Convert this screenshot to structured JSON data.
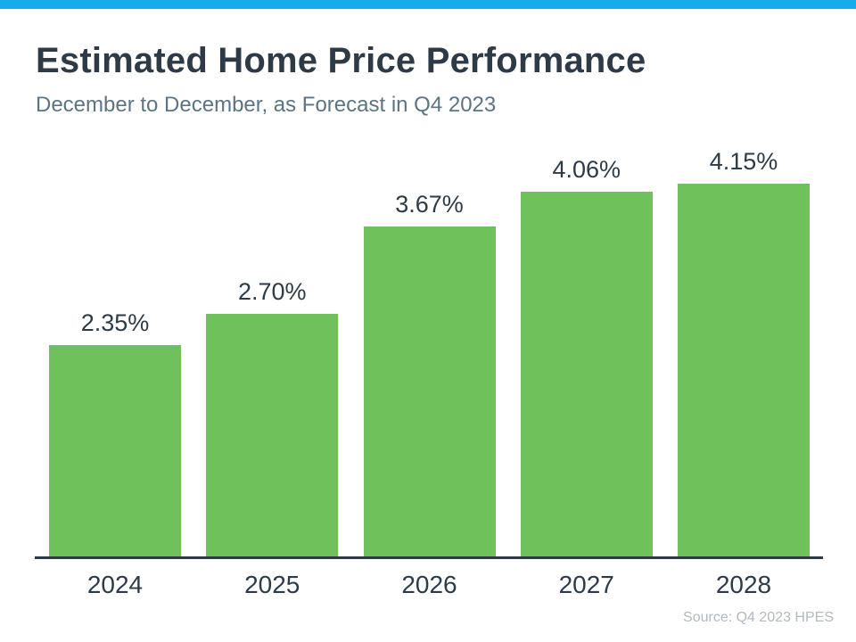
{
  "page": {
    "title": "Estimated Home Price Performance",
    "subtitle": "December to December, as Forecast in Q4 2023",
    "source": "Source: Q4 2023 HPES"
  },
  "colors": {
    "accent_strip": "#18abec",
    "bar_fill": "#6fc15b",
    "title_text": "#2e3b46",
    "subtitle_text": "#5d7482",
    "axis_line": "#2e3b46",
    "source_text": "#b2b9bf"
  },
  "chart_data": {
    "type": "bar",
    "title": "Estimated Home Price Performance",
    "subtitle": "December to December, as Forecast in Q4 2023",
    "categories": [
      "2024",
      "2025",
      "2026",
      "2027",
      "2028"
    ],
    "values": [
      2.35,
      2.7,
      3.67,
      4.06,
      4.15
    ],
    "data_labels": [
      "2.35%",
      "2.70%",
      "3.67%",
      "4.06%",
      "4.15%"
    ],
    "xlabel": "",
    "ylabel": "",
    "ylim": [
      0,
      4.15
    ],
    "grid": false,
    "legend": null,
    "bar_color": "#6fc15b",
    "source": "Source: Q4 2023 HPES"
  }
}
